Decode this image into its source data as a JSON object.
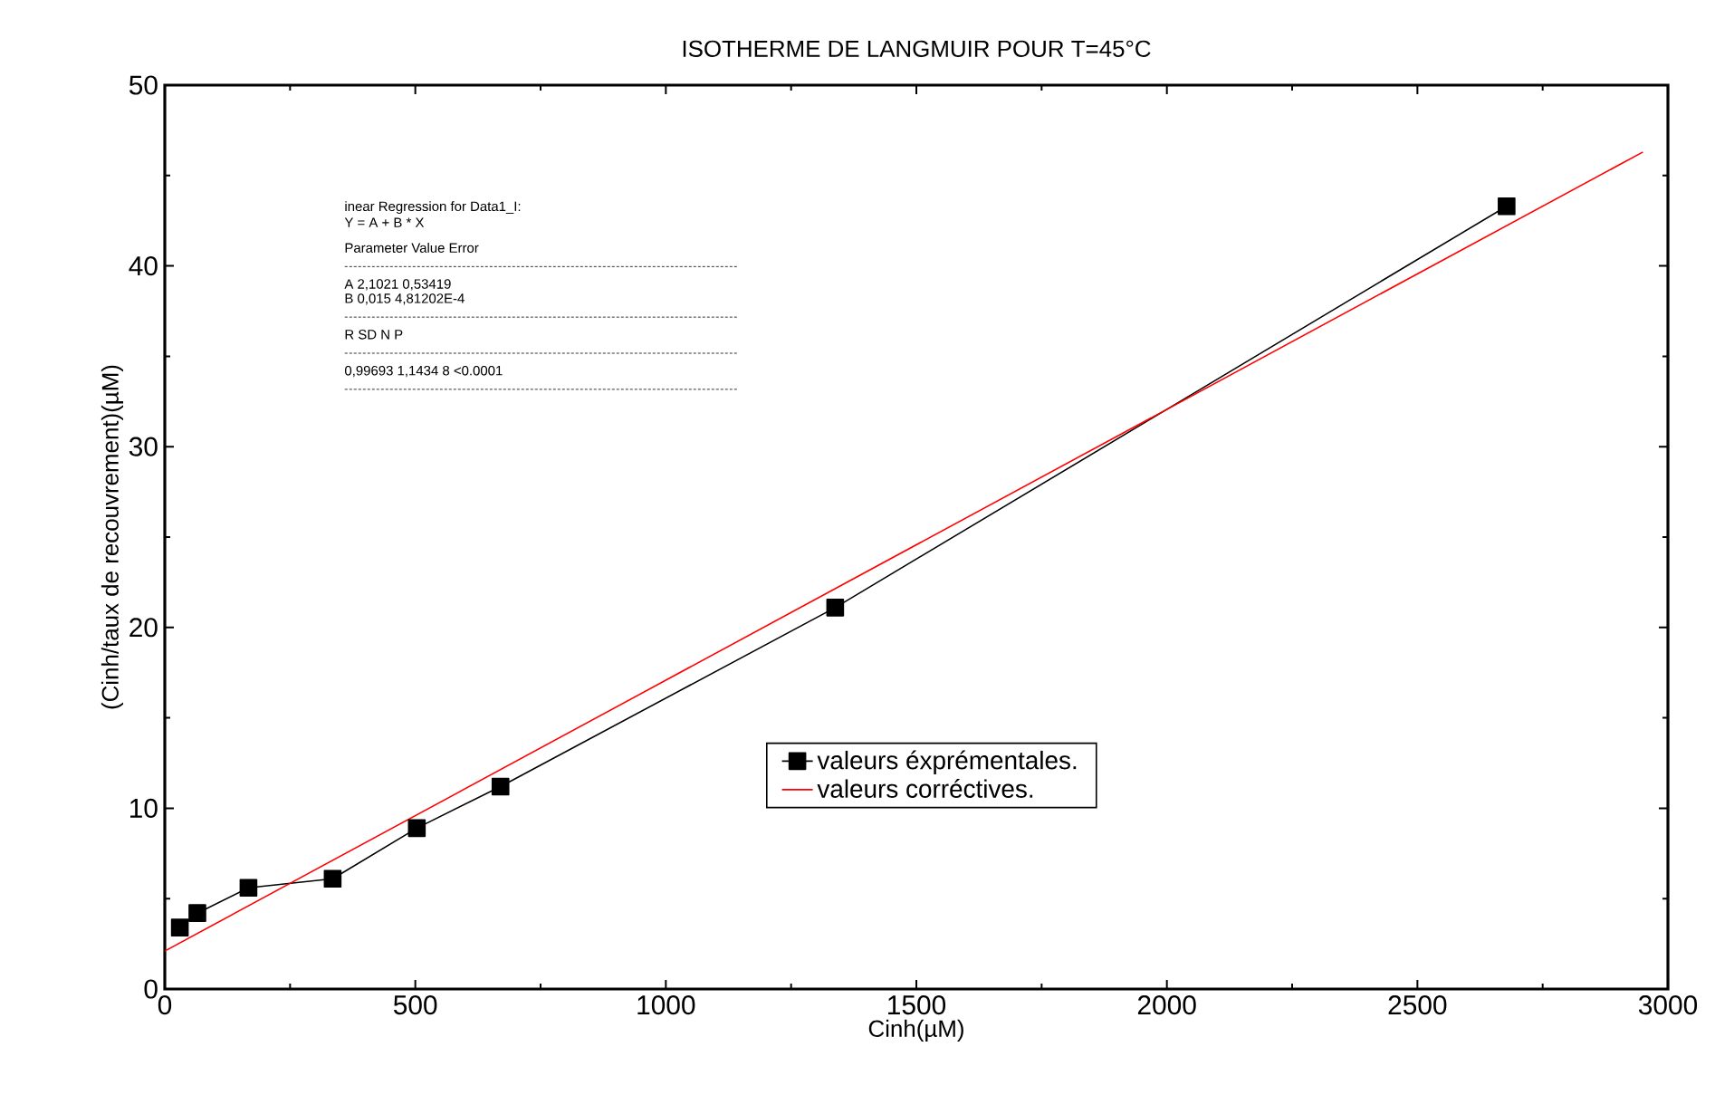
{
  "chart_data": {
    "type": "line",
    "title": "ISOTHERME DE LANGMUIR POUR T=45°C",
    "xlabel": "Cinh(µM)",
    "ylabel": "(Cinh/taux de recouvrement)(µM)",
    "xlim": [
      0,
      3000
    ],
    "ylim": [
      0,
      50
    ],
    "xticks": [
      0,
      500,
      1000,
      1500,
      2000,
      2500,
      3000
    ],
    "yticks": [
      0,
      10,
      20,
      30,
      40,
      50
    ],
    "grid": false,
    "legend": "bottom",
    "series": [
      {
        "name": "valeurs éxprémentales.",
        "color": "#000000",
        "marker": "square",
        "x": [
          30,
          65,
          167,
          335,
          503,
          670,
          1338,
          2678
        ],
        "values": [
          3.4,
          4.2,
          5.6,
          6.1,
          8.9,
          11.2,
          21.1,
          43.3
        ]
      },
      {
        "name": "valeurs corréctives.",
        "color": "#ff0000",
        "marker": "none",
        "x": [
          0,
          2950
        ],
        "values": [
          2.1,
          46.3
        ]
      }
    ],
    "annotations": [
      "inear Regression for Data1_I:",
      "Y = A + B * X",
      "Parameter Value Error",
      "A 2,1021 0,53419",
      "B 0,015 4,81202E-4",
      "R SD N P",
      "0,99693 1,1434 8 <0.0001"
    ]
  }
}
